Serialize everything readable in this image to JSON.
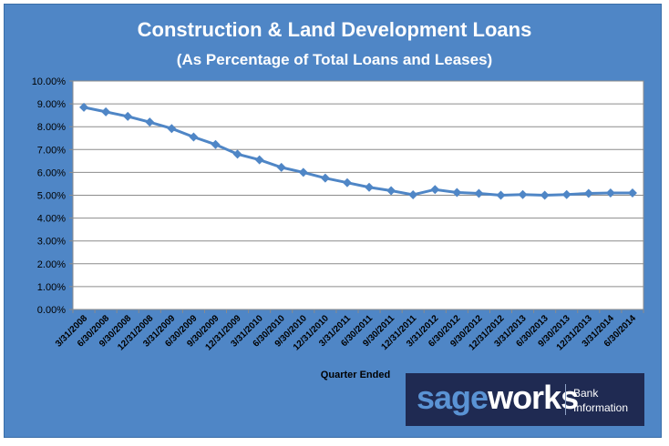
{
  "chart_data": {
    "type": "line",
    "title": "Construction & Land Development Loans",
    "subtitle": "(As Percentage of Total Loans and Leases)",
    "xlabel": "Quarter Ended",
    "ylabel": "",
    "categories": [
      "3/31/2008",
      "6/30/2008",
      "9/30/2008",
      "12/31/2008",
      "3/31/2009",
      "6/30/2009",
      "9/30/2009",
      "12/31/2009",
      "3/31/2010",
      "6/30/2010",
      "9/30/2010",
      "12/31/2010",
      "3/31/2011",
      "6/30/2011",
      "9/30/2011",
      "12/31/2011",
      "3/31/2012",
      "6/30/2012",
      "9/30/2012",
      "12/31/2012",
      "3/31/2013",
      "6/30/2013",
      "9/30/2013",
      "12/31/2013",
      "3/31/2014",
      "6/30/2014"
    ],
    "series": [
      {
        "values": [
          8.85,
          8.65,
          8.45,
          8.2,
          7.92,
          7.55,
          7.22,
          6.8,
          6.55,
          6.22,
          6.0,
          5.75,
          5.55,
          5.35,
          5.2,
          5.02,
          5.25,
          5.12,
          5.08,
          5.0,
          5.03,
          5.0,
          5.03,
          5.08,
          5.1,
          5.1
        ],
        "color": "#4f86c6"
      }
    ],
    "ylim": [
      0,
      10
    ],
    "yticks": [
      "0.00%",
      "1.00%",
      "2.00%",
      "3.00%",
      "4.00%",
      "5.00%",
      "6.00%",
      "7.00%",
      "8.00%",
      "9.00%",
      "10.00%"
    ],
    "grid": true,
    "legend": "none"
  },
  "logo": {
    "part1": "sage",
    "part2": "works",
    "tagline_line1": "Bank",
    "tagline_line2": "Information"
  },
  "colors": {
    "background": "#4f86c6",
    "plot_area": "#ffffff",
    "line": "#4f86c6",
    "logo_bg": "#1f2a52"
  }
}
